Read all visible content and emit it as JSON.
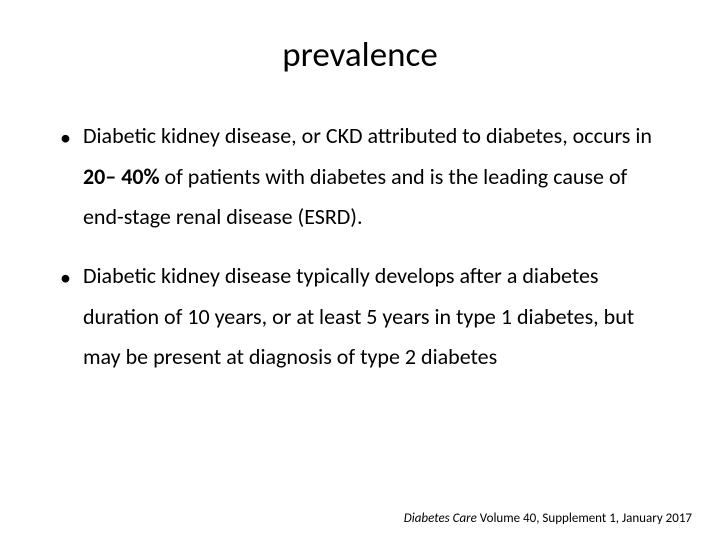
{
  "title": "prevalence",
  "bullets": [
    {
      "pre": "Diabetic kidney disease, or CKD attributed to diabetes, occurs in ",
      "bold": "20– 40%",
      "post": " of patients with diabetes and is the leading cause of end-stage renal disease (ESRD)."
    },
    {
      "pre": "Diabetic kidney disease typically develops after a diabetes duration of 10 years, or at least 5 years in type 1 diabetes, but may be present at diagnosis of type 2 diabetes",
      "bold": "",
      "post": ""
    }
  ],
  "citation": {
    "journal": "Diabetes Care",
    "rest": "  Volume 40, Supplement 1, January 2017"
  },
  "colors": {
    "background": "#ffffff",
    "text": "#000000"
  },
  "typography": {
    "title_fontsize": 35,
    "body_fontsize": 22,
    "citation_fontsize": 13
  }
}
